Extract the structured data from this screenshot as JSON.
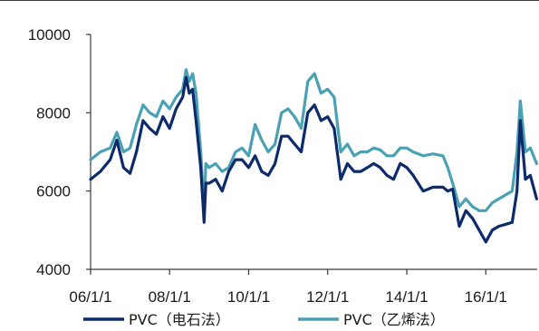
{
  "chart_data": {
    "type": "line",
    "title": "",
    "xlabel": "",
    "ylabel": "",
    "ylim": [
      4000,
      10000
    ],
    "yticks": [
      4000,
      6000,
      8000,
      10000
    ],
    "yticks_labels": [
      "4000",
      "6000",
      "8000",
      "10000"
    ],
    "xticks": [
      "2006-01-01",
      "2008-01-01",
      "2010-01-01",
      "2012-01-01",
      "2014-01-01",
      "2016-01-01"
    ],
    "xticks_labels": [
      "06/1/1",
      "08/1/1",
      "10/1/1",
      "12/1/1",
      "14/1/1",
      "16/1/1"
    ],
    "xlim": [
      "2006-01-01",
      "2017-04-20"
    ],
    "grid": false,
    "legend_position": "bottom",
    "x": [
      "2006-01-01",
      "2006-04-01",
      "2006-07-01",
      "2006-09-01",
      "2006-11-01",
      "2007-01-01",
      "2007-03-01",
      "2007-05-01",
      "2007-07-01",
      "2007-09-01",
      "2007-11-01",
      "2008-01-01",
      "2008-03-01",
      "2008-05-01",
      "2008-06-01",
      "2008-07-01",
      "2008-08-01",
      "2008-09-01",
      "2008-10-15",
      "2008-11-15",
      "2008-12-01",
      "2009-01-01",
      "2009-03-01",
      "2009-05-01",
      "2009-07-01",
      "2009-09-01",
      "2009-11-01",
      "2010-01-01",
      "2010-03-01",
      "2010-05-01",
      "2010-07-01",
      "2010-09-01",
      "2010-11-01",
      "2011-01-01",
      "2011-03-01",
      "2011-05-01",
      "2011-07-01",
      "2011-09-01",
      "2011-11-01",
      "2012-01-01",
      "2012-03-01",
      "2012-05-01",
      "2012-07-01",
      "2012-09-01",
      "2012-11-01",
      "2013-01-01",
      "2013-03-01",
      "2013-05-01",
      "2013-07-01",
      "2013-09-01",
      "2013-11-01",
      "2014-01-01",
      "2014-03-01",
      "2014-06-01",
      "2014-09-01",
      "2014-12-01",
      "2015-01-15",
      "2015-03-01",
      "2015-05-01",
      "2015-07-01",
      "2015-09-01",
      "2015-11-01",
      "2016-01-01",
      "2016-03-01",
      "2016-05-01",
      "2016-07-01",
      "2016-09-01",
      "2016-10-15",
      "2016-11-15",
      "2017-01-01",
      "2017-02-15",
      "2017-04-15"
    ],
    "series": [
      {
        "name": "PVC（电石法）",
        "color": "#0d2b6b",
        "values": [
          6300,
          6500,
          6800,
          7300,
          6600,
          6450,
          7000,
          7800,
          7600,
          7450,
          7900,
          7600,
          8100,
          8400,
          8900,
          8500,
          8600,
          7800,
          6600,
          5200,
          6200,
          6200,
          6300,
          6000,
          6500,
          6800,
          6800,
          6600,
          6900,
          6500,
          6400,
          6700,
          7400,
          7400,
          7200,
          7000,
          8000,
          8200,
          7800,
          7900,
          7600,
          6300,
          6700,
          6500,
          6500,
          6600,
          6700,
          6600,
          6400,
          6300,
          6700,
          6600,
          6400,
          6000,
          6100,
          6100,
          6000,
          6050,
          5100,
          5500,
          5300,
          5000,
          4700,
          5000,
          5100,
          5150,
          5200,
          6000,
          7800,
          6300,
          6400,
          5800
        ]
      },
      {
        "name": "PVC（乙烯法）",
        "color": "#4aa1b3",
        "values": [
          6800,
          7000,
          7100,
          7500,
          7000,
          7100,
          7700,
          8200,
          8000,
          7900,
          8300,
          8100,
          8400,
          8600,
          9100,
          8800,
          9000,
          8500,
          7000,
          5500,
          6700,
          6600,
          6700,
          6500,
          6600,
          7000,
          7100,
          6900,
          7700,
          7300,
          7000,
          7200,
          8000,
          8100,
          7900,
          7600,
          8800,
          9000,
          8500,
          8600,
          8400,
          7000,
          7200,
          6900,
          7000,
          7000,
          7100,
          7050,
          6900,
          6900,
          7100,
          7100,
          7000,
          6900,
          6950,
          6900,
          6600,
          6200,
          5600,
          5800,
          5600,
          5500,
          5500,
          5700,
          5800,
          5900,
          6000,
          7000,
          8300,
          7000,
          7100,
          6700
        ]
      }
    ]
  }
}
